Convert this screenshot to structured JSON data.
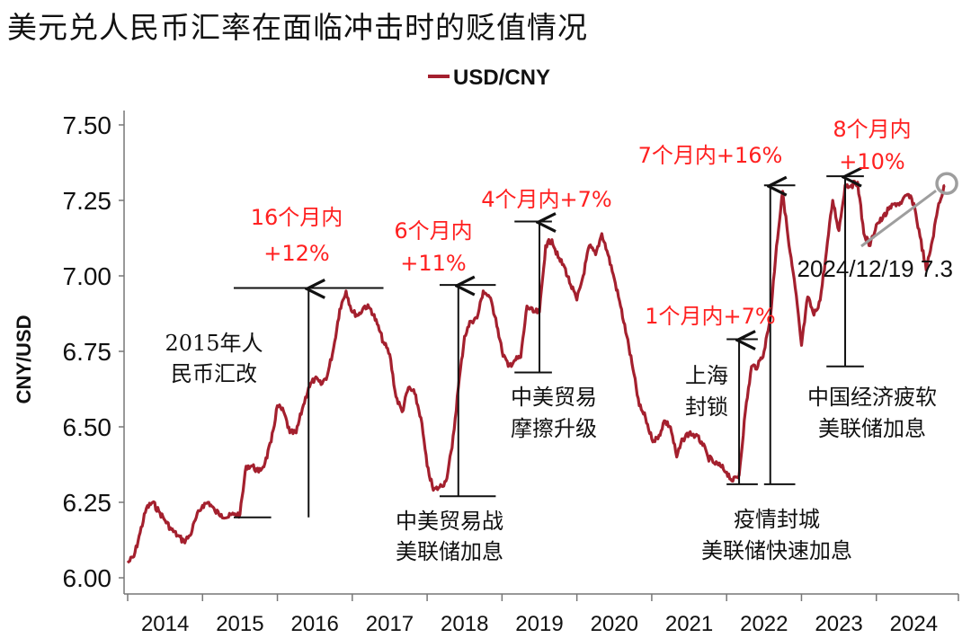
{
  "chart_data": {
    "type": "line",
    "title": "美元兑人民币汇率在面临冲击时的贬值情况",
    "ylabel": "CNY/USD",
    "xlabel": "",
    "ylim": [
      6.0,
      7.5
    ],
    "yticks": [
      "6.00",
      "6.25",
      "6.50",
      "6.75",
      "7.00",
      "7.25",
      "7.50"
    ],
    "xticks": [
      "2014",
      "2015",
      "2016",
      "2017",
      "2018",
      "2019",
      "2020",
      "2021",
      "2022",
      "2023",
      "2024"
    ],
    "legend": "top-center",
    "grid": false,
    "colors": {
      "series": "#A4202E",
      "annotation": "#FF2020",
      "marker": "#9E9E9E"
    },
    "series": [
      {
        "name": "USD/CNY",
        "points": [
          [
            "2014-01",
            6.05
          ],
          [
            "2014-02",
            6.07
          ],
          [
            "2014-03",
            6.15
          ],
          [
            "2014-04",
            6.23
          ],
          [
            "2014-05",
            6.25
          ],
          [
            "2014-06",
            6.22
          ],
          [
            "2014-07",
            6.19
          ],
          [
            "2014-08",
            6.16
          ],
          [
            "2014-09",
            6.14
          ],
          [
            "2014-10",
            6.12
          ],
          [
            "2014-11",
            6.14
          ],
          [
            "2014-12",
            6.2
          ],
          [
            "2015-01",
            6.24
          ],
          [
            "2015-02",
            6.25
          ],
          [
            "2015-03",
            6.22
          ],
          [
            "2015-04",
            6.21
          ],
          [
            "2015-05",
            6.2
          ],
          [
            "2015-06",
            6.21
          ],
          [
            "2015-07",
            6.21
          ],
          [
            "2015-08",
            6.37
          ],
          [
            "2015-09",
            6.37
          ],
          [
            "2015-10",
            6.35
          ],
          [
            "2015-11",
            6.38
          ],
          [
            "2015-12",
            6.45
          ],
          [
            "2016-01",
            6.57
          ],
          [
            "2016-02",
            6.55
          ],
          [
            "2016-03",
            6.48
          ],
          [
            "2016-04",
            6.48
          ],
          [
            "2016-05",
            6.56
          ],
          [
            "2016-06",
            6.63
          ],
          [
            "2016-07",
            6.66
          ],
          [
            "2016-08",
            6.64
          ],
          [
            "2016-09",
            6.67
          ],
          [
            "2016-10",
            6.76
          ],
          [
            "2016-11",
            6.89
          ],
          [
            "2016-12",
            6.95
          ],
          [
            "2017-01",
            6.88
          ],
          [
            "2017-02",
            6.87
          ],
          [
            "2017-03",
            6.9
          ],
          [
            "2017-04",
            6.89
          ],
          [
            "2017-05",
            6.84
          ],
          [
            "2017-06",
            6.78
          ],
          [
            "2017-07",
            6.74
          ],
          [
            "2017-08",
            6.6
          ],
          [
            "2017-09",
            6.55
          ],
          [
            "2017-10",
            6.63
          ],
          [
            "2017-11",
            6.61
          ],
          [
            "2017-12",
            6.53
          ],
          [
            "2018-01",
            6.37
          ],
          [
            "2018-02",
            6.29
          ],
          [
            "2018-03",
            6.3
          ],
          [
            "2018-04",
            6.32
          ],
          [
            "2018-05",
            6.43
          ],
          [
            "2018-06",
            6.63
          ],
          [
            "2018-07",
            6.8
          ],
          [
            "2018-08",
            6.85
          ],
          [
            "2018-09",
            6.86
          ],
          [
            "2018-10",
            6.95
          ],
          [
            "2018-11",
            6.93
          ],
          [
            "2018-12",
            6.86
          ],
          [
            "2019-01",
            6.75
          ],
          [
            "2019-02",
            6.7
          ],
          [
            "2019-03",
            6.72
          ],
          [
            "2019-04",
            6.73
          ],
          [
            "2019-05",
            6.9
          ],
          [
            "2019-06",
            6.88
          ],
          [
            "2019-07",
            6.88
          ],
          [
            "2019-08",
            7.1
          ],
          [
            "2019-09",
            7.12
          ],
          [
            "2019-10",
            7.06
          ],
          [
            "2019-11",
            7.03
          ],
          [
            "2019-12",
            6.97
          ],
          [
            "2020-01",
            6.92
          ],
          [
            "2020-02",
            7.0
          ],
          [
            "2020-03",
            7.1
          ],
          [
            "2020-04",
            7.07
          ],
          [
            "2020-05",
            7.14
          ],
          [
            "2020-06",
            7.07
          ],
          [
            "2020-07",
            6.99
          ],
          [
            "2020-08",
            6.9
          ],
          [
            "2020-09",
            6.8
          ],
          [
            "2020-10",
            6.69
          ],
          [
            "2020-11",
            6.57
          ],
          [
            "2020-12",
            6.53
          ],
          [
            "2021-01",
            6.46
          ],
          [
            "2021-02",
            6.46
          ],
          [
            "2021-03",
            6.52
          ],
          [
            "2021-04",
            6.5
          ],
          [
            "2021-05",
            6.4
          ],
          [
            "2021-06",
            6.46
          ],
          [
            "2021-07",
            6.48
          ],
          [
            "2021-08",
            6.47
          ],
          [
            "2021-09",
            6.45
          ],
          [
            "2021-10",
            6.4
          ],
          [
            "2021-11",
            6.38
          ],
          [
            "2021-12",
            6.37
          ],
          [
            "2022-01",
            6.35
          ],
          [
            "2022-02",
            6.32
          ],
          [
            "2022-03",
            6.34
          ],
          [
            "2022-04",
            6.55
          ],
          [
            "2022-05",
            6.7
          ],
          [
            "2022-06",
            6.7
          ],
          [
            "2022-07",
            6.75
          ],
          [
            "2022-08",
            6.86
          ],
          [
            "2022-09",
            7.1
          ],
          [
            "2022-10",
            7.28
          ],
          [
            "2022-11",
            7.1
          ],
          [
            "2022-12",
            6.96
          ],
          [
            "2023-01",
            6.77
          ],
          [
            "2023-02",
            6.93
          ],
          [
            "2023-03",
            6.87
          ],
          [
            "2023-04",
            6.92
          ],
          [
            "2023-05",
            7.08
          ],
          [
            "2023-06",
            7.25
          ],
          [
            "2023-07",
            7.15
          ],
          [
            "2023-08",
            7.3
          ],
          [
            "2023-09",
            7.3
          ],
          [
            "2023-10",
            7.31
          ],
          [
            "2023-11",
            7.14
          ],
          [
            "2023-12",
            7.1
          ],
          [
            "2024-01",
            7.17
          ],
          [
            "2024-02",
            7.19
          ],
          [
            "2024-03",
            7.22
          ],
          [
            "2024-04",
            7.24
          ],
          [
            "2024-05",
            7.24
          ],
          [
            "2024-06",
            7.27
          ],
          [
            "2024-07",
            7.24
          ],
          [
            "2024-08",
            7.13
          ],
          [
            "2024-09",
            7.02
          ],
          [
            "2024-10",
            7.12
          ],
          [
            "2024-11",
            7.24
          ],
          [
            "2024-12",
            7.3
          ]
        ]
      }
    ],
    "annotations": [
      {
        "text_lines": [
          "16个月内",
          "+12%"
        ],
        "color": "red",
        "from_date": "2015-06",
        "from_value": 6.2,
        "to_value": 6.96,
        "arrow_date": "2016-06",
        "bar_from": "2015-06",
        "bar_to": "2017-06"
      },
      {
        "text_lines": [
          "6个月内",
          "+11%"
        ],
        "color": "red",
        "from_date": "2018-03",
        "from_value": 6.27,
        "to_value": 6.97,
        "arrow_date": "2018-06",
        "bar_from": "2018-03",
        "bar_to": "2018-12"
      },
      {
        "text_lines": [
          "4个月内+7%"
        ],
        "color": "red",
        "from_date": "2019-03",
        "from_value": 6.68,
        "to_value": 7.18,
        "arrow_date": "2019-07",
        "bar_from": "2019-03",
        "bar_to": "2019-09"
      },
      {
        "text_lines": [
          "7个月内+16%"
        ],
        "color": "red",
        "from_date": "2022-01",
        "from_value": 6.31,
        "to_value": 7.3,
        "arrow_date": "2022-08",
        "bar_from": "2022-07",
        "bar_to": "2022-12"
      },
      {
        "text_lines": [
          "1个月内+7%"
        ],
        "color": "red",
        "from_date": "2022-01",
        "from_value": 6.31,
        "to_value": 6.79,
        "arrow_date": "2022-03",
        "bar_from": "2022-01",
        "bar_to": "2022-06"
      },
      {
        "text_lines": [
          "8个月内",
          "+10%"
        ],
        "color": "red",
        "from_date": "2023-08",
        "from_value": 6.7,
        "to_value": 7.33,
        "arrow_date": "2023-08",
        "bar_from": "2023-05",
        "bar_to": "2023-11"
      }
    ],
    "event_labels": [
      {
        "lines": [
          "2015年人",
          "民币汇改"
        ]
      },
      {
        "lines": [
          "中美贸易战",
          "美联储加息"
        ]
      },
      {
        "lines": [
          "中美贸易",
          "摩擦升级"
        ]
      },
      {
        "lines": [
          "上海",
          "封锁"
        ]
      },
      {
        "lines": [
          "疫情封城",
          "美联储快速加息"
        ]
      },
      {
        "lines": [
          "中国经济疲软",
          "美联储加息"
        ]
      }
    ],
    "last_point_label": "2024/12/19 7.3"
  }
}
